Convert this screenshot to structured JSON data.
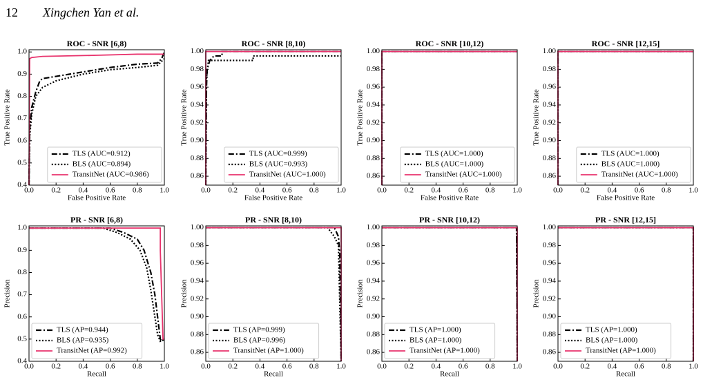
{
  "header": {
    "page_number": "12",
    "authors": "Xingchen Yan et al."
  },
  "chart_data": [
    {
      "type": "line",
      "title": "ROC - SNR [6,8)",
      "xlabel": "False Positive Rate",
      "ylabel": "True Positive Rate",
      "legend": "lower right",
      "xlim": [
        0,
        1
      ],
      "ylim": [
        0.4,
        1.01
      ],
      "xticks": [
        {
          "value": 0,
          "label": "0.0"
        },
        0.2,
        0.4,
        0.6,
        0.8,
        {
          "value": 1,
          "label": "1.0"
        }
      ],
      "yticks": [
        0.4,
        0.5,
        0.6,
        0.7,
        0.8,
        0.9,
        {
          "value": 1,
          "label": "1.0"
        }
      ],
      "series": [
        {
          "name": "TLS (AUC=0.912)",
          "color": "#000000",
          "dash": "dashdot",
          "x": [
            0,
            0.005,
            0.02,
            0.05,
            0.08,
            0.1,
            0.2,
            0.4,
            0.6,
            0.8,
            0.95,
            0.98,
            1.0
          ],
          "values": [
            0.4,
            0.65,
            0.75,
            0.82,
            0.87,
            0.88,
            0.89,
            0.91,
            0.93,
            0.945,
            0.95,
            0.97,
            1.0
          ]
        },
        {
          "name": "BLS (AUC=0.894)",
          "color": "#000000",
          "dash": "dotted",
          "x": [
            0,
            0.005,
            0.02,
            0.05,
            0.1,
            0.2,
            0.4,
            0.6,
            0.8,
            0.95,
            1.0
          ],
          "values": [
            0.4,
            0.62,
            0.72,
            0.8,
            0.84,
            0.87,
            0.9,
            0.92,
            0.93,
            0.94,
            0.97
          ]
        },
        {
          "name": "TransitNet (AUC=0.986)",
          "color": "#e8336d",
          "dash": "solid",
          "x": [
            0,
            0.005,
            0.02,
            0.1,
            0.5,
            0.8,
            1.0
          ],
          "values": [
            0.4,
            0.97,
            0.975,
            0.98,
            0.985,
            0.99,
            0.99
          ]
        }
      ]
    },
    {
      "type": "line",
      "title": "ROC - SNR [8,10)",
      "xlabel": "False Positive Rate",
      "ylabel": "True Positive Rate",
      "legend": "lower right",
      "xlim": [
        0,
        1
      ],
      "ylim": [
        0.85,
        1.002
      ],
      "xticks": [
        {
          "value": 0,
          "label": "0.0"
        },
        0.2,
        0.4,
        0.6,
        0.8,
        {
          "value": 1,
          "label": "1.0"
        }
      ],
      "yticks": [
        0.86,
        0.88,
        {
          "value": 0.9,
          "label": "0.90"
        },
        0.92,
        0.94,
        0.96,
        0.98,
        {
          "value": 1,
          "label": "1.00"
        }
      ],
      "series": [
        {
          "name": "TLS (AUC=0.999)",
          "color": "#000000",
          "dash": "dashdot",
          "x": [
            0,
            0.005,
            0.01,
            0.03,
            0.06,
            0.12,
            0.12,
            1.0
          ],
          "values": [
            0.85,
            0.96,
            0.98,
            0.99,
            0.995,
            0.995,
            1.0,
            1.0
          ]
        },
        {
          "name": "BLS (AUC=0.993)",
          "color": "#000000",
          "dash": "dotted",
          "x": [
            0,
            0.005,
            0.02,
            0.35,
            0.35,
            1.0
          ],
          "values": [
            0.85,
            0.97,
            0.99,
            0.99,
            0.995,
            0.995
          ]
        },
        {
          "name": "TransitNet (AUC=1.000)",
          "color": "#e8336d",
          "dash": "solid",
          "x": [
            0,
            0,
            1.0
          ],
          "values": [
            0.85,
            1.0,
            1.0
          ]
        }
      ]
    },
    {
      "type": "line",
      "title": "ROC - SNR [10,12)",
      "xlabel": "False Positive Rate",
      "ylabel": "True Positive Rate",
      "legend": "lower right",
      "xlim": [
        0,
        1
      ],
      "ylim": [
        0.85,
        1.002
      ],
      "xticks": [
        {
          "value": 0,
          "label": "0.0"
        },
        0.2,
        0.4,
        0.6,
        0.8,
        {
          "value": 1,
          "label": "1.0"
        }
      ],
      "yticks": [
        0.86,
        0.88,
        {
          "value": 0.9,
          "label": "0.90"
        },
        0.92,
        0.94,
        0.96,
        0.98,
        {
          "value": 1,
          "label": "1.00"
        }
      ],
      "series": [
        {
          "name": "TLS (AUC=1.000)",
          "color": "#000000",
          "dash": "dashdot",
          "x": [
            0,
            0,
            1.0
          ],
          "values": [
            0.85,
            1.0,
            1.0
          ]
        },
        {
          "name": "BLS (AUC=1.000)",
          "color": "#000000",
          "dash": "dotted",
          "x": [
            0,
            0,
            1.0
          ],
          "values": [
            0.85,
            1.0,
            1.0
          ]
        },
        {
          "name": "TransitNet (AUC=1.000)",
          "color": "#e8336d",
          "dash": "solid",
          "x": [
            0,
            0,
            1.0
          ],
          "values": [
            0.85,
            1.0,
            1.0
          ]
        }
      ]
    },
    {
      "type": "line",
      "title": "ROC - SNR [12,15]",
      "xlabel": "False Positive Rate",
      "ylabel": "True Positive Rate",
      "legend": "lower right",
      "xlim": [
        0,
        1
      ],
      "ylim": [
        0.85,
        1.002
      ],
      "xticks": [
        {
          "value": 0,
          "label": "0.0"
        },
        0.2,
        0.4,
        0.6,
        0.8,
        {
          "value": 1,
          "label": "1.0"
        }
      ],
      "yticks": [
        0.86,
        0.88,
        {
          "value": 0.9,
          "label": "0.90"
        },
        0.92,
        0.94,
        0.96,
        0.98,
        {
          "value": 1,
          "label": "1.00"
        }
      ],
      "series": [
        {
          "name": "TLS (AUC=1.000)",
          "color": "#000000",
          "dash": "dashdot",
          "x": [
            0,
            0,
            1.0
          ],
          "values": [
            0.85,
            1.0,
            1.0
          ]
        },
        {
          "name": "BLS (AUC=1.000)",
          "color": "#000000",
          "dash": "dotted",
          "x": [
            0,
            0,
            1.0
          ],
          "values": [
            0.85,
            1.0,
            1.0
          ]
        },
        {
          "name": "TransitNet (AUC=1.000)",
          "color": "#e8336d",
          "dash": "solid",
          "x": [
            0,
            0,
            1.0
          ],
          "values": [
            0.85,
            1.0,
            1.0
          ]
        }
      ]
    },
    {
      "type": "line",
      "title": "PR - SNR [6,8)",
      "xlabel": "Recall",
      "ylabel": "Precision",
      "legend": "lower left",
      "xlim": [
        0,
        1
      ],
      "ylim": [
        0.4,
        1.01
      ],
      "xticks": [
        {
          "value": 0,
          "label": "0.0"
        },
        0.2,
        0.4,
        0.6,
        0.8,
        {
          "value": 1,
          "label": "1.0"
        }
      ],
      "yticks": [
        0.4,
        0.5,
        0.6,
        0.7,
        0.8,
        0.9,
        {
          "value": 1,
          "label": "1.0"
        }
      ],
      "series": [
        {
          "name": "TLS (AP=0.944)",
          "color": "#000000",
          "dash": "dashdot",
          "x": [
            0,
            0.6,
            0.7,
            0.8,
            0.85,
            0.9,
            0.93,
            0.95,
            0.97,
            0.98,
            1.0
          ],
          "values": [
            1.0,
            1.0,
            0.98,
            0.95,
            0.9,
            0.8,
            0.7,
            0.6,
            0.5,
            0.49,
            0.5
          ]
        },
        {
          "name": "BLS (AP=0.935)",
          "color": "#000000",
          "dash": "dotted",
          "x": [
            0,
            0.55,
            0.65,
            0.75,
            0.82,
            0.87,
            0.9,
            0.93,
            0.95,
            0.97,
            1.0
          ],
          "values": [
            1.0,
            1.0,
            0.98,
            0.95,
            0.9,
            0.82,
            0.72,
            0.6,
            0.52,
            0.49,
            0.5
          ]
        },
        {
          "name": "TransitNet (AP=0.992)",
          "color": "#e8336d",
          "dash": "solid",
          "x": [
            0,
            0.8,
            0.97,
            0.97,
            0.98,
            0.99,
            1.0
          ],
          "values": [
            1.0,
            1.0,
            1.0,
            0.9,
            0.7,
            0.5,
            0.5
          ]
        }
      ]
    },
    {
      "type": "line",
      "title": "PR - SNR [8,10)",
      "xlabel": "Recall",
      "ylabel": "Precision",
      "legend": "lower left",
      "xlim": [
        0,
        1
      ],
      "ylim": [
        0.85,
        1.002
      ],
      "xticks": [
        {
          "value": 0,
          "label": "0.0"
        },
        0.2,
        0.4,
        0.6,
        0.8,
        {
          "value": 1,
          "label": "1.0"
        }
      ],
      "yticks": [
        0.86,
        0.88,
        {
          "value": 0.9,
          "label": "0.90"
        },
        0.92,
        0.94,
        0.96,
        0.98,
        {
          "value": 1,
          "label": "1.00"
        }
      ],
      "series": [
        {
          "name": "TLS (AP=0.999)",
          "color": "#000000",
          "dash": "dashdot",
          "x": [
            0,
            0.95,
            0.98,
            0.99,
            1.0
          ],
          "values": [
            1.0,
            1.0,
            0.99,
            0.97,
            0.85
          ]
        },
        {
          "name": "BLS (AP=0.996)",
          "color": "#000000",
          "dash": "dotted",
          "x": [
            0,
            0.9,
            0.95,
            0.98,
            1.0
          ],
          "values": [
            1.0,
            1.0,
            0.99,
            0.98,
            0.85
          ]
        },
        {
          "name": "TransitNet (AP=1.000)",
          "color": "#e8336d",
          "dash": "solid",
          "x": [
            0,
            1.0,
            1.0
          ],
          "values": [
            1.0,
            1.0,
            0.85
          ]
        }
      ]
    },
    {
      "type": "line",
      "title": "PR - SNR [10,12)",
      "xlabel": "Recall",
      "ylabel": "Precision",
      "legend": "lower left",
      "xlim": [
        0,
        1
      ],
      "ylim": [
        0.85,
        1.002
      ],
      "xticks": [
        {
          "value": 0,
          "label": "0.0"
        },
        0.2,
        0.4,
        0.6,
        0.8,
        {
          "value": 1,
          "label": "1.0"
        }
      ],
      "yticks": [
        0.86,
        0.88,
        {
          "value": 0.9,
          "label": "0.90"
        },
        0.92,
        0.94,
        0.96,
        0.98,
        {
          "value": 1,
          "label": "1.00"
        }
      ],
      "series": [
        {
          "name": "TLS (AP=1.000)",
          "color": "#000000",
          "dash": "dashdot",
          "x": [
            0,
            0.995,
            1.0
          ],
          "values": [
            1.0,
            1.0,
            0.85
          ]
        },
        {
          "name": "BLS (AP=1.000)",
          "color": "#000000",
          "dash": "dotted",
          "x": [
            0,
            0.995,
            1.0
          ],
          "values": [
            1.0,
            1.0,
            0.85
          ]
        },
        {
          "name": "TransitNet (AP=1.000)",
          "color": "#e8336d",
          "dash": "solid",
          "x": [
            0,
            1.0,
            1.0
          ],
          "values": [
            1.0,
            1.0,
            0.85
          ]
        }
      ]
    },
    {
      "type": "line",
      "title": "PR - SNR [12,15]",
      "xlabel": "Recall",
      "ylabel": "Precision",
      "legend": "lower left",
      "xlim": [
        0,
        1
      ],
      "ylim": [
        0.85,
        1.002
      ],
      "xticks": [
        {
          "value": 0,
          "label": "0.0"
        },
        0.2,
        0.4,
        0.6,
        0.8,
        {
          "value": 1,
          "label": "1.0"
        }
      ],
      "yticks": [
        0.86,
        0.88,
        {
          "value": 0.9,
          "label": "0.90"
        },
        0.92,
        0.94,
        0.96,
        0.98,
        {
          "value": 1,
          "label": "1.00"
        }
      ],
      "series": [
        {
          "name": "TLS (AP=1.000)",
          "color": "#000000",
          "dash": "dashdot",
          "x": [
            0,
            1.0,
            1.0
          ],
          "values": [
            1.0,
            1.0,
            0.85
          ]
        },
        {
          "name": "BLS (AP=1.000)",
          "color": "#000000",
          "dash": "dotted",
          "x": [
            0,
            1.0,
            1.0
          ],
          "values": [
            1.0,
            1.0,
            0.85
          ]
        },
        {
          "name": "TransitNet (AP=1.000)",
          "color": "#e8336d",
          "dash": "solid",
          "x": [
            0,
            1.0,
            1.0
          ],
          "values": [
            1.0,
            1.0,
            0.85
          ]
        }
      ]
    }
  ]
}
